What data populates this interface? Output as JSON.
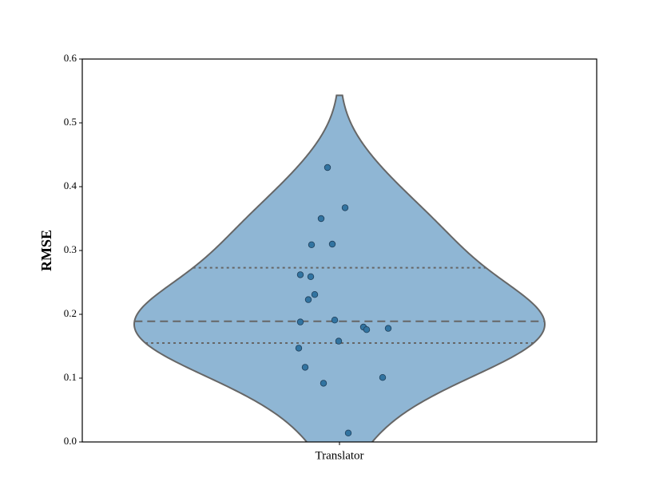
{
  "chart_data": {
    "type": "violin",
    "ylabel": "RMSE",
    "categories": [
      "Translator"
    ],
    "values": [
      0.43,
      0.367,
      0.35,
      0.309,
      0.31,
      0.262,
      0.259,
      0.231,
      0.223,
      0.191,
      0.188,
      0.18,
      0.176,
      0.178,
      0.158,
      0.147,
      0.117,
      0.092,
      0.101,
      0.014
    ],
    "quartiles": [
      0.155,
      0.189,
      0.273
    ],
    "color": "#8fb6d4",
    "point_color": "#3274a1",
    "ylim": [
      0,
      0.6
    ],
    "yticks": [
      {
        "value": 0,
        "label": "0.0"
      },
      0.1,
      0.2,
      0.3,
      0.4,
      0.5,
      0.6
    ]
  }
}
